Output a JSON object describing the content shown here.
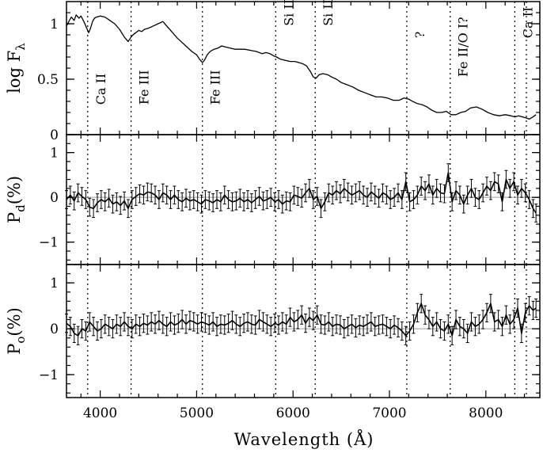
{
  "chart_data": {
    "type": "line",
    "xlabel": "Wavelength (Å)",
    "xlim": [
      3650,
      8560
    ],
    "x_ticks": [
      4000,
      5000,
      6000,
      7000,
      8000
    ],
    "feature_lines": [
      3870,
      4320,
      5060,
      5820,
      6230,
      7180,
      7630,
      8300,
      8420
    ],
    "panels": [
      {
        "id": "flux",
        "ylabel": "log F",
        "ylabel_sub": "λ",
        "ylim": [
          0,
          1.2
        ],
        "y_ticks": [
          0,
          0.5,
          1
        ],
        "y_tick_labels": [
          "0",
          "0.5",
          "1"
        ],
        "features": [
          {
            "label": "Ca II",
            "x": 3870,
            "y": 0.27
          },
          {
            "label": "Fe III",
            "x": 4320,
            "y": 0.27
          },
          {
            "label": "Fe III",
            "x": 5060,
            "y": 0.27
          },
          {
            "label": "Si II",
            "x": 5820,
            "y": 0.98
          },
          {
            "label": "Si II",
            "x": 6230,
            "y": 0.98
          },
          {
            "label": "?",
            "x": 7180,
            "y": 0.87
          },
          {
            "label": "Fe II/O I?",
            "x": 7630,
            "y": 0.52
          },
          {
            "label": "Ca II",
            "x": 8300,
            "y": 0.87
          }
        ],
        "series": [
          {
            "x": [
              3650,
              3680,
              3700,
              3730,
              3750,
              3780,
              3800,
              3830,
              3850,
              3880,
              3900,
              3920,
              3940,
              3960,
              4000,
              4050,
              4100,
              4150,
              4200,
              4250,
              4290,
              4320,
              4340,
              4370,
              4400,
              4430,
              4460,
              4500,
              4550,
              4600,
              4650,
              4680,
              4710,
              4740,
              4770,
              4800,
              4850,
              4900,
              4950,
              5000,
              5030,
              5060,
              5080,
              5110,
              5140,
              5180,
              5220,
              5260,
              5300,
              5350,
              5400,
              5450,
              5500,
              5560,
              5620,
              5680,
              5720,
              5760,
              5800,
              5830,
              5870,
              5920,
              5970,
              6020,
              6060,
              6100,
              6140,
              6180,
              6210,
              6240,
              6270,
              6310,
              6360,
              6400,
              6450,
              6500,
              6560,
              6620,
              6680,
              6740,
              6800,
              6860,
              6920,
              6980,
              7040,
              7100,
              7150,
              7200,
              7240,
              7290,
              7340,
              7390,
              7440,
              7490,
              7540,
              7590,
              7640,
              7690,
              7740,
              7790,
              7840,
              7900,
              7960,
              8020,
              8080,
              8140,
              8200,
              8260,
              8300,
              8340,
              8380,
              8420,
              8450,
              8490,
              8520
            ],
            "y": [
              0.98,
              1.03,
              1.06,
              1.03,
              1.08,
              1.05,
              1.07,
              1.02,
              0.98,
              0.92,
              0.96,
              1.02,
              1.05,
              1.06,
              1.07,
              1.06,
              1.03,
              1.0,
              0.95,
              0.88,
              0.84,
              0.88,
              0.9,
              0.92,
              0.94,
              0.93,
              0.95,
              0.96,
              0.98,
              1.0,
              1.02,
              0.99,
              0.96,
              0.93,
              0.9,
              0.87,
              0.83,
              0.79,
              0.75,
              0.72,
              0.68,
              0.65,
              0.67,
              0.72,
              0.75,
              0.77,
              0.78,
              0.8,
              0.79,
              0.78,
              0.77,
              0.77,
              0.77,
              0.76,
              0.75,
              0.73,
              0.74,
              0.73,
              0.71,
              0.7,
              0.68,
              0.67,
              0.66,
              0.66,
              0.65,
              0.64,
              0.62,
              0.57,
              0.52,
              0.51,
              0.54,
              0.55,
              0.54,
              0.52,
              0.5,
              0.47,
              0.45,
              0.43,
              0.4,
              0.38,
              0.36,
              0.34,
              0.34,
              0.33,
              0.31,
              0.31,
              0.33,
              0.32,
              0.3,
              0.28,
              0.27,
              0.25,
              0.22,
              0.2,
              0.2,
              0.21,
              0.18,
              0.18,
              0.2,
              0.21,
              0.24,
              0.25,
              0.23,
              0.2,
              0.18,
              0.17,
              0.18,
              0.17,
              0.16,
              0.17,
              0.16,
              0.15,
              0.14,
              0.16,
              0.18
            ]
          }
        ]
      },
      {
        "id": "pd",
        "ylabel": "P",
        "ylabel_sub": "d",
        "ylabel_suffix": "(%)",
        "ylim": [
          -1.5,
          1.4
        ],
        "y_ticks": [
          -1,
          0,
          1
        ],
        "y_tick_labels": [
          "−1",
          "0",
          "1"
        ],
        "series": [
          {
            "x": [
              3650,
              3690,
              3730,
              3770,
              3810,
              3850,
              3890,
              3930,
              3970,
              4010,
              4050,
              4090,
              4130,
              4170,
              4210,
              4250,
              4290,
              4330,
              4370,
              4410,
              4450,
              4490,
              4530,
              4570,
              4610,
              4650,
              4690,
              4730,
              4770,
              4810,
              4850,
              4890,
              4930,
              4970,
              5010,
              5050,
              5090,
              5130,
              5170,
              5210,
              5250,
              5290,
              5330,
              5370,
              5410,
              5450,
              5490,
              5530,
              5570,
              5610,
              5650,
              5690,
              5730,
              5770,
              5810,
              5850,
              5890,
              5930,
              5970,
              6010,
              6050,
              6090,
              6130,
              6170,
              6210,
              6250,
              6290,
              6330,
              6370,
              6410,
              6450,
              6490,
              6530,
              6570,
              6610,
              6650,
              6690,
              6730,
              6770,
              6810,
              6850,
              6890,
              6930,
              6970,
              7010,
              7050,
              7090,
              7130,
              7170,
              7210,
              7250,
              7290,
              7330,
              7370,
              7410,
              7450,
              7490,
              7530,
              7570,
              7610,
              7650,
              7690,
              7730,
              7770,
              7810,
              7850,
              7890,
              7930,
              7970,
              8010,
              8050,
              8090,
              8130,
              8170,
              8210,
              8250,
              8290,
              8330,
              8370,
              8410,
              8450,
              8490,
              8520
            ],
            "y": [
              -0.05,
              0.05,
              -0.08,
              0.1,
              0.02,
              -0.05,
              -0.22,
              -0.25,
              -0.12,
              -0.05,
              -0.1,
              -0.02,
              -0.15,
              -0.1,
              -0.18,
              -0.08,
              -0.25,
              -0.05,
              0.02,
              0.08,
              0.05,
              0.12,
              0.1,
              0.05,
              -0.05,
              0.1,
              0.05,
              -0.05,
              0.05,
              -0.05,
              -0.1,
              -0.02,
              -0.08,
              -0.05,
              -0.1,
              -0.15,
              -0.05,
              -0.08,
              -0.12,
              -0.05,
              -0.1,
              0.05,
              -0.05,
              -0.1,
              -0.08,
              -0.02,
              -0.1,
              -0.05,
              -0.12,
              -0.05,
              0.02,
              -0.08,
              -0.05,
              0.0,
              -0.1,
              -0.05,
              -0.15,
              -0.08,
              -0.1,
              0.05,
              0.02,
              -0.02,
              0.1,
              0.2,
              -0.05,
              0.02,
              -0.25,
              -0.1,
              0.1,
              0.05,
              0.15,
              0.08,
              0.2,
              0.12,
              0.05,
              0.1,
              0.15,
              0.05,
              0.0,
              0.12,
              0.05,
              -0.02,
              0.1,
              0.05,
              -0.05,
              0.0,
              0.1,
              -0.05,
              0.35,
              -0.1,
              -0.05,
              0.05,
              0.25,
              0.15,
              0.3,
              0.05,
              0.2,
              0.1,
              0.08,
              0.55,
              -0.1,
              0.15,
              0.05,
              -0.15,
              0.05,
              0.2,
              0.0,
              -0.05,
              0.1,
              0.25,
              0.15,
              0.35,
              0.3,
              -0.1,
              0.4,
              0.2,
              0.35,
              0.05,
              0.2,
              0.1,
              -0.05,
              -0.25,
              -0.35
            ],
            "yerr": 0.2
          }
        ]
      },
      {
        "id": "po",
        "ylabel": "P",
        "ylabel_sub": "o",
        "ylabel_suffix": "(%)",
        "ylim": [
          -1.5,
          1.4
        ],
        "y_ticks": [
          -1,
          0,
          1
        ],
        "y_tick_labels": [
          "−1",
          "0",
          "1"
        ],
        "series": [
          {
            "x": [
              3650,
              3690,
              3730,
              3770,
              3810,
              3850,
              3890,
              3930,
              3970,
              4010,
              4050,
              4090,
              4130,
              4170,
              4210,
              4250,
              4290,
              4330,
              4370,
              4410,
              4450,
              4490,
              4530,
              4570,
              4610,
              4650,
              4690,
              4730,
              4770,
              4810,
              4850,
              4890,
              4930,
              4970,
              5010,
              5050,
              5090,
              5130,
              5170,
              5210,
              5250,
              5290,
              5330,
              5370,
              5410,
              5450,
              5490,
              5530,
              5570,
              5610,
              5650,
              5690,
              5730,
              5770,
              5810,
              5850,
              5890,
              5930,
              5970,
              6010,
              6050,
              6090,
              6130,
              6170,
              6210,
              6250,
              6290,
              6330,
              6370,
              6410,
              6450,
              6490,
              6530,
              6570,
              6610,
              6650,
              6690,
              6730,
              6770,
              6810,
              6850,
              6890,
              6930,
              6970,
              7010,
              7050,
              7090,
              7130,
              7170,
              7210,
              7250,
              7290,
              7330,
              7370,
              7410,
              7450,
              7490,
              7530,
              7570,
              7610,
              7650,
              7690,
              7730,
              7770,
              7810,
              7850,
              7890,
              7930,
              7970,
              8010,
              8050,
              8090,
              8130,
              8170,
              8210,
              8250,
              8290,
              8330,
              8370,
              8410,
              8450,
              8490,
              8520
            ],
            "y": [
              0.12,
              0.05,
              -0.1,
              -0.15,
              0.0,
              -0.05,
              0.15,
              0.05,
              -0.05,
              0.0,
              0.1,
              0.05,
              0.0,
              0.1,
              0.05,
              0.15,
              0.05,
              0.0,
              0.1,
              0.05,
              0.12,
              0.08,
              0.15,
              0.1,
              0.18,
              0.1,
              0.05,
              0.15,
              0.08,
              0.12,
              0.2,
              0.1,
              0.18,
              0.15,
              0.1,
              0.15,
              0.12,
              0.08,
              0.15,
              0.05,
              0.1,
              0.08,
              0.12,
              0.18,
              0.1,
              0.05,
              0.12,
              0.15,
              0.1,
              0.08,
              0.2,
              0.15,
              0.1,
              0.05,
              0.12,
              0.08,
              0.15,
              0.1,
              0.25,
              0.15,
              0.2,
              0.3,
              0.12,
              0.25,
              0.18,
              0.3,
              0.1,
              0.08,
              0.15,
              0.05,
              0.1,
              0.08,
              0.0,
              0.05,
              0.1,
              0.02,
              0.08,
              0.05,
              0.1,
              0.15,
              0.05,
              0.08,
              0.1,
              0.05,
              0.0,
              0.08,
              0.02,
              -0.05,
              -0.15,
              -0.05,
              0.1,
              0.35,
              0.55,
              0.3,
              0.2,
              0.05,
              0.15,
              0.0,
              -0.05,
              0.1,
              -0.15,
              0.2,
              0.05,
              0.0,
              -0.1,
              0.15,
              0.05,
              0.1,
              0.2,
              0.35,
              0.55,
              0.15,
              0.2,
              0.05,
              0.3,
              0.1,
              0.2,
              0.45,
              -0.1,
              0.35,
              0.5,
              0.4,
              0.45
            ],
            "yerr": 0.2
          }
        ]
      }
    ]
  }
}
